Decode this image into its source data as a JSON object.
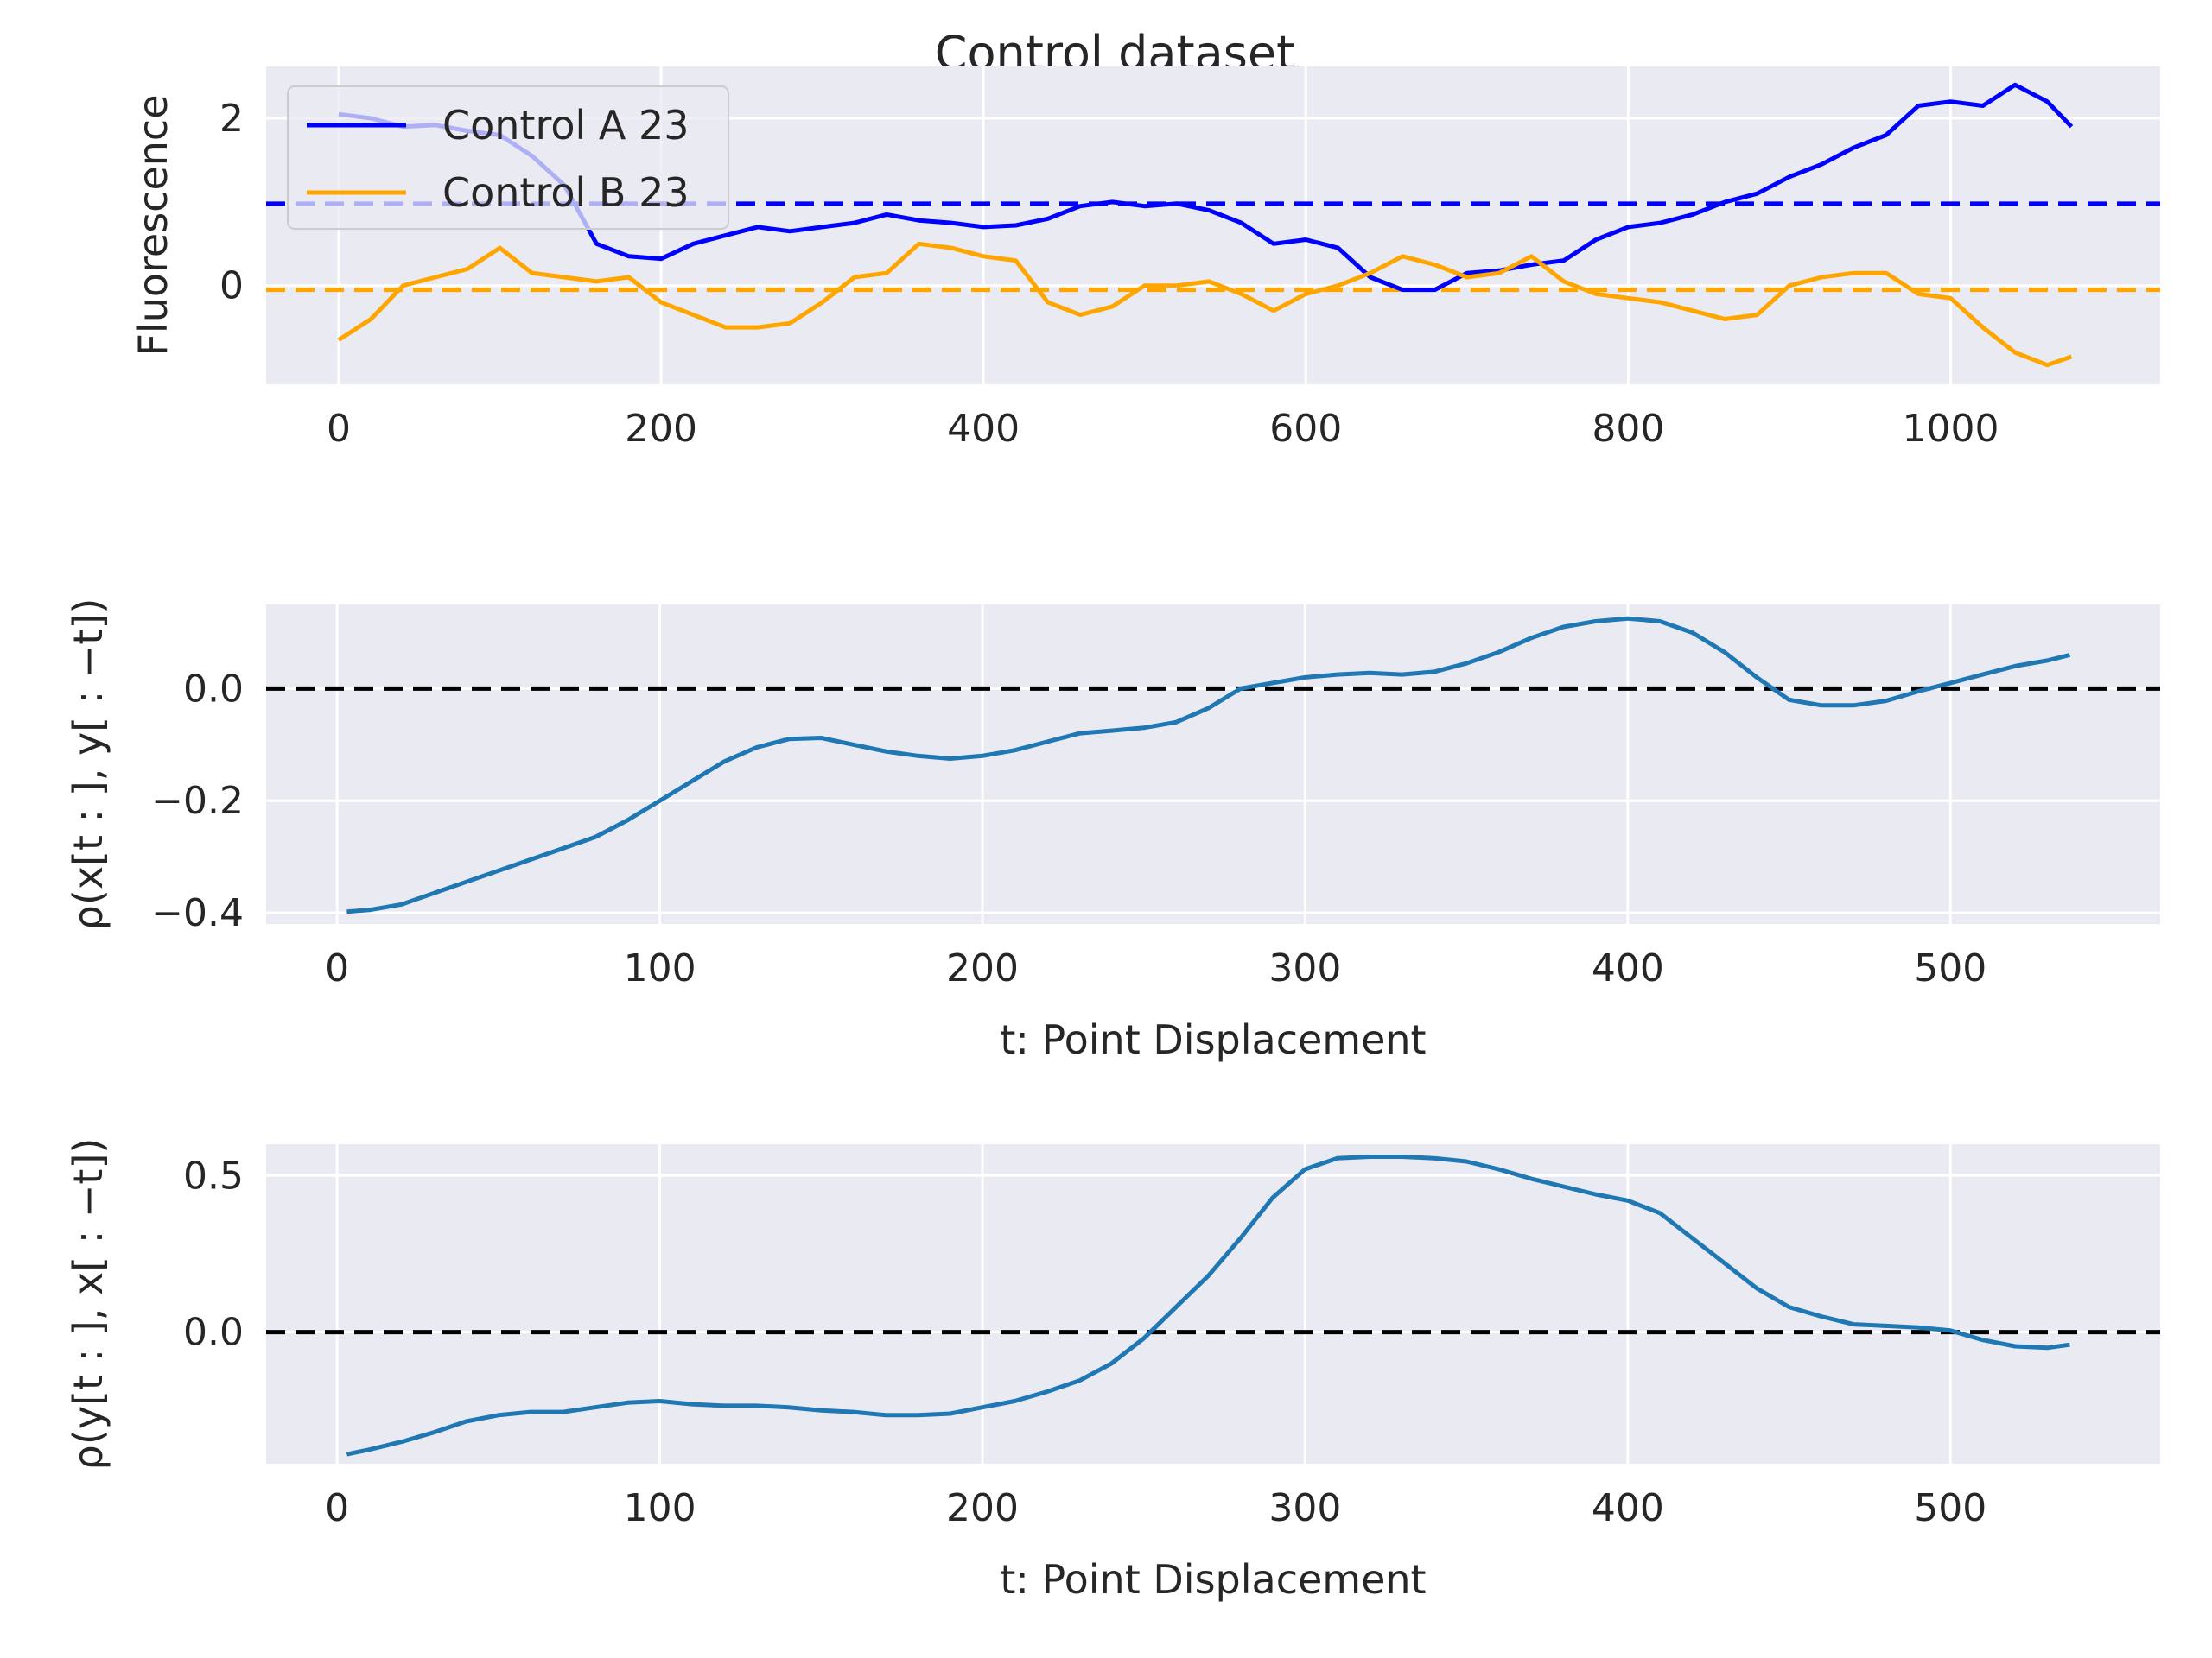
{
  "title": "Control dataset",
  "chart_data": [
    {
      "type": "line",
      "xlabel": "",
      "ylabel": "Fluorescence",
      "xlim": [
        -45,
        1130
      ],
      "ylim": [
        -1.18,
        2.62
      ],
      "xticks": [
        0,
        200,
        400,
        600,
        800,
        1000
      ],
      "yticks": [
        0,
        2
      ],
      "grid": true,
      "legend": "top-left",
      "series": [
        {
          "name": "Control A 23",
          "color": "#0000ff",
          "x": [
            0,
            20,
            40,
            60,
            80,
            100,
            120,
            140,
            160,
            180,
            200,
            220,
            240,
            260,
            280,
            300,
            320,
            340,
            360,
            380,
            400,
            420,
            440,
            460,
            480,
            500,
            520,
            540,
            560,
            580,
            600,
            620,
            640,
            660,
            680,
            700,
            720,
            740,
            760,
            780,
            800,
            820,
            840,
            860,
            880,
            900,
            920,
            940,
            960,
            980,
            1000,
            1020,
            1040,
            1060,
            1075
          ],
          "y": [
            2.05,
            2.0,
            1.9,
            1.92,
            1.85,
            1.8,
            1.55,
            1.2,
            0.5,
            0.35,
            0.32,
            0.5,
            0.6,
            0.7,
            0.65,
            0.7,
            0.75,
            0.85,
            0.78,
            0.75,
            0.7,
            0.72,
            0.8,
            0.95,
            1.0,
            0.95,
            0.98,
            0.9,
            0.75,
            0.5,
            0.55,
            0.45,
            0.1,
            -0.05,
            -0.05,
            0.15,
            0.18,
            0.25,
            0.3,
            0.55,
            0.7,
            0.75,
            0.85,
            1.0,
            1.1,
            1.3,
            1.45,
            1.65,
            1.8,
            2.15,
            2.2,
            2.15,
            2.4,
            2.2,
            1.9
          ]
        },
        {
          "name": "Control B 23",
          "color": "#ffa500",
          "x": [
            0,
            20,
            40,
            60,
            80,
            100,
            120,
            140,
            160,
            180,
            200,
            220,
            240,
            260,
            280,
            300,
            320,
            340,
            360,
            380,
            400,
            420,
            440,
            460,
            480,
            500,
            520,
            540,
            560,
            580,
            600,
            620,
            640,
            660,
            680,
            700,
            720,
            740,
            760,
            780,
            800,
            820,
            840,
            860,
            880,
            900,
            920,
            940,
            960,
            980,
            1000,
            1020,
            1040,
            1060,
            1075
          ],
          "y": [
            -0.65,
            -0.4,
            0.0,
            0.1,
            0.2,
            0.45,
            0.15,
            0.1,
            0.05,
            0.1,
            -0.2,
            -0.35,
            -0.5,
            -0.5,
            -0.45,
            -0.2,
            0.1,
            0.15,
            0.5,
            0.45,
            0.35,
            0.3,
            -0.2,
            -0.35,
            -0.25,
            0.0,
            0.0,
            0.05,
            -0.1,
            -0.3,
            -0.1,
            0.0,
            0.15,
            0.35,
            0.25,
            0.1,
            0.15,
            0.35,
            0.05,
            -0.1,
            -0.15,
            -0.2,
            -0.3,
            -0.4,
            -0.35,
            0.0,
            0.1,
            0.15,
            0.15,
            -0.1,
            -0.15,
            -0.5,
            -0.8,
            -0.95,
            -0.85
          ]
        }
      ],
      "reference_lines": [
        {
          "y": 0.98,
          "color": "#0000ff",
          "style": "dashed"
        },
        {
          "y": -0.05,
          "color": "#ffa500",
          "style": "dashed"
        }
      ]
    },
    {
      "type": "line",
      "xlabel": "t: Point Displacement",
      "ylabel": "ρ(x[t : ], y[ : −t])",
      "xlim": [
        -22,
        565
      ],
      "ylim": [
        -0.42,
        0.15
      ],
      "xticks": [
        0,
        100,
        200,
        300,
        400,
        500
      ],
      "yticks": [
        0.0,
        -0.2,
        -0.4
      ],
      "ytick_labels": [
        "0.0",
        "−0.2",
        "−0.4"
      ],
      "grid": true,
      "series": [
        {
          "color": "#1f77b4",
          "x": [
            3,
            10,
            20,
            30,
            40,
            50,
            60,
            70,
            80,
            90,
            100,
            110,
            120,
            130,
            140,
            150,
            160,
            170,
            180,
            190,
            200,
            210,
            220,
            230,
            240,
            250,
            260,
            270,
            280,
            290,
            300,
            310,
            320,
            330,
            340,
            350,
            360,
            370,
            380,
            390,
            400,
            410,
            420,
            430,
            440,
            450,
            460,
            470,
            480,
            490,
            500,
            510,
            520,
            530,
            537
          ],
          "y": [
            -0.398,
            -0.395,
            -0.385,
            -0.365,
            -0.345,
            -0.325,
            -0.305,
            -0.285,
            -0.265,
            -0.235,
            -0.2,
            -0.165,
            -0.13,
            -0.105,
            -0.09,
            -0.088,
            -0.1,
            -0.112,
            -0.12,
            -0.125,
            -0.12,
            -0.11,
            -0.095,
            -0.08,
            -0.075,
            -0.07,
            -0.06,
            -0.035,
            0.0,
            0.01,
            0.02,
            0.025,
            0.028,
            0.025,
            0.03,
            0.045,
            0.065,
            0.09,
            0.11,
            0.12,
            0.125,
            0.12,
            0.1,
            0.065,
            0.02,
            -0.02,
            -0.03,
            -0.03,
            -0.022,
            -0.005,
            0.01,
            0.025,
            0.04,
            0.05,
            0.06
          ]
        }
      ],
      "reference_lines": [
        {
          "y": 0,
          "color": "#000000",
          "style": "dashed"
        }
      ]
    },
    {
      "type": "line",
      "xlabel": "t: Point Displacement",
      "ylabel": "ρ(y[t : ], x[ : −t])",
      "xlim": [
        -22,
        565
      ],
      "ylim": [
        -0.42,
        0.6
      ],
      "xticks": [
        0,
        100,
        200,
        300,
        400,
        500
      ],
      "yticks": [
        0.5,
        0.0
      ],
      "ytick_labels": [
        "0.5",
        "0.0"
      ],
      "grid": true,
      "series": [
        {
          "color": "#1f77b4",
          "x": [
            3,
            10,
            20,
            30,
            40,
            50,
            60,
            70,
            80,
            90,
            100,
            110,
            120,
            130,
            140,
            150,
            160,
            170,
            180,
            190,
            200,
            210,
            220,
            230,
            240,
            250,
            260,
            270,
            280,
            290,
            300,
            310,
            320,
            330,
            340,
            350,
            360,
            370,
            380,
            390,
            400,
            410,
            420,
            430,
            440,
            450,
            460,
            470,
            480,
            490,
            500,
            510,
            520,
            530,
            537
          ],
          "y": [
            -0.39,
            -0.375,
            -0.35,
            -0.32,
            -0.285,
            -0.265,
            -0.255,
            -0.255,
            -0.24,
            -0.225,
            -0.22,
            -0.23,
            -0.235,
            -0.235,
            -0.24,
            -0.25,
            -0.255,
            -0.265,
            -0.265,
            -0.26,
            -0.24,
            -0.22,
            -0.19,
            -0.155,
            -0.1,
            -0.02,
            0.08,
            0.18,
            0.3,
            0.43,
            0.52,
            0.555,
            0.56,
            0.56,
            0.555,
            0.545,
            0.52,
            0.49,
            0.465,
            0.44,
            0.42,
            0.38,
            0.3,
            0.22,
            0.14,
            0.08,
            0.05,
            0.025,
            0.02,
            0.015,
            0.005,
            -0.025,
            -0.045,
            -0.05,
            -0.04
          ]
        }
      ],
      "reference_lines": [
        {
          "y": 0,
          "color": "#000000",
          "style": "dashed"
        }
      ]
    }
  ]
}
